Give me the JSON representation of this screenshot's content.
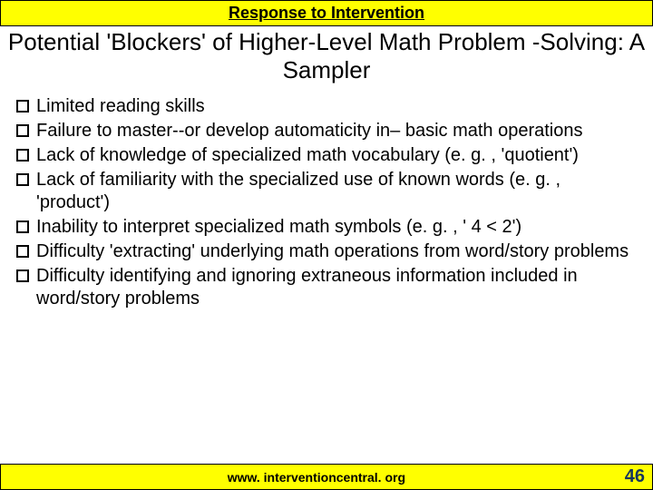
{
  "header": {
    "text": "Response to Intervention"
  },
  "title": {
    "text": "Potential 'Blockers' of Higher-Level Math Problem -Solving: A Sampler"
  },
  "bullets": {
    "items": [
      {
        "text": "Limited reading skills"
      },
      {
        "text": "Failure to master--or develop automaticity in– basic math operations"
      },
      {
        "text": "Lack of knowledge of specialized math vocabulary (e. g. , 'quotient')"
      },
      {
        "text": "Lack of familiarity with the specialized use of known words (e. g. , 'product')"
      },
      {
        "text": "Inability to interpret specialized math symbols (e. g. , ' 4 < 2')"
      },
      {
        "text": "Difficulty 'extracting' underlying math operations from word/story problems"
      },
      {
        "text": "Difficulty identifying and ignoring extraneous information included in word/story problems"
      }
    ]
  },
  "footer": {
    "url": "www. interventioncentral. org",
    "page": "46"
  },
  "colors": {
    "highlight": "#ffff00",
    "page_number": "#17365d"
  }
}
